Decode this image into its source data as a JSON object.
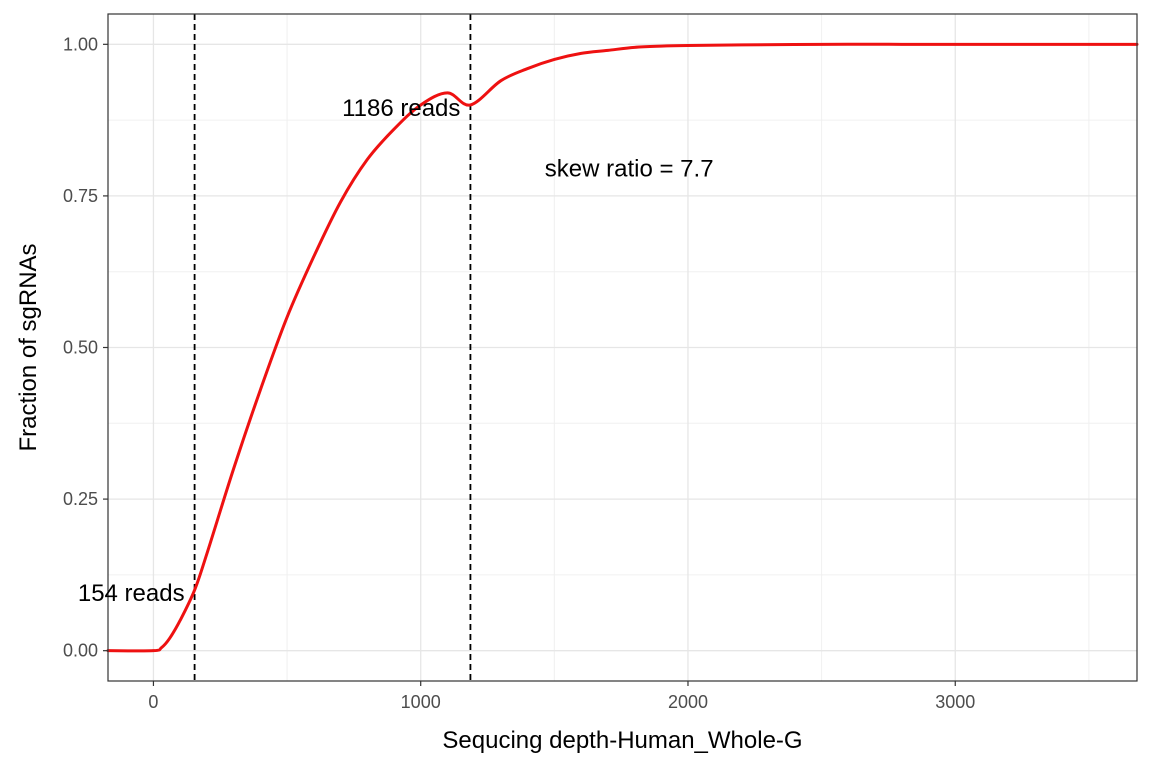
{
  "chart_data": {
    "type": "line",
    "title": "",
    "xlabel": "Sequcing depth-Human_Whole-G",
    "ylabel": "Fraction of sgRNAs",
    "xlim": [
      -170,
      3680
    ],
    "ylim": [
      -0.05,
      1.05
    ],
    "x_ticks": [
      0,
      1000,
      2000,
      3000
    ],
    "x_tick_labels": [
      "0",
      "1000",
      "2000",
      "3000"
    ],
    "y_ticks": [
      0,
      0.25,
      0.5,
      0.75,
      1.0
    ],
    "y_tick_labels": [
      "0.00",
      "0.25",
      "0.50",
      "0.75",
      "1.00"
    ],
    "grid": true,
    "legend": "none",
    "series": [
      {
        "color": "#ee1111",
        "x": [
          -170,
          0,
          30,
          60,
          100,
          154,
          200,
          300,
          400,
          500,
          600,
          700,
          800,
          900,
          1000,
          1100,
          1186,
          1300,
          1400,
          1500,
          1600,
          1700,
          1800,
          1900,
          2000,
          2200,
          2500,
          2800,
          3200,
          3680
        ],
        "y": [
          0,
          0,
          0.005,
          0.02,
          0.05,
          0.1,
          0.16,
          0.3,
          0.43,
          0.55,
          0.65,
          0.74,
          0.81,
          0.86,
          0.9,
          0.92,
          0.9,
          0.94,
          0.96,
          0.975,
          0.985,
          0.99,
          0.995,
          0.997,
          0.998,
          0.999,
          1.0,
          1.0,
          1.0,
          1.0
        ]
      }
    ],
    "vlines": [
      154,
      1186
    ],
    "annotations": [
      {
        "text": "154 reads",
        "x": 154,
        "y": 0.095
      },
      {
        "text": "1186 reads",
        "x": 1186,
        "y": 0.895
      },
      {
        "text": "skew ratio = 7.7",
        "x": 1780,
        "y": 0.795
      }
    ]
  }
}
